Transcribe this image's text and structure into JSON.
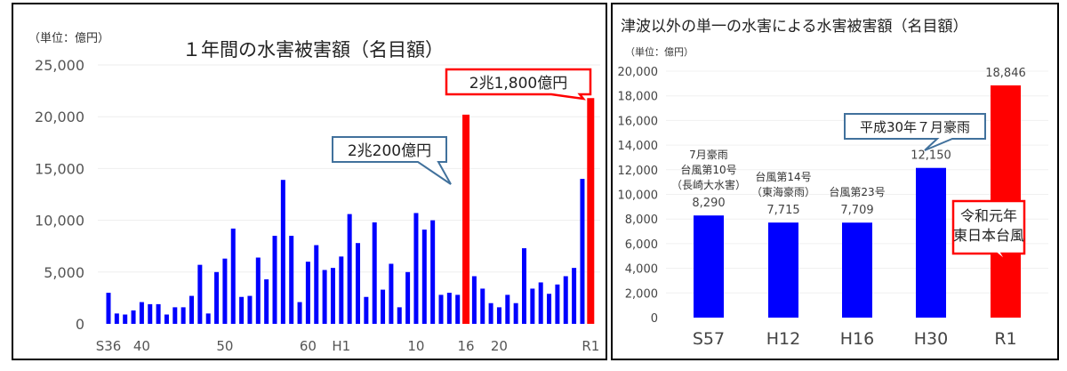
{
  "chart_data": [
    {
      "type": "bar",
      "title": "１年間の水害被害額（名目額）",
      "unit_label": "（単位：億円）",
      "ylim": [
        0,
        25000
      ],
      "yticks": [
        "0",
        "5,000",
        "10,000",
        "15,000",
        "20,000",
        "25,000"
      ],
      "ytick_values": [
        0,
        5000,
        10000,
        15000,
        20000,
        25000
      ],
      "grid": true,
      "categories": [
        "S36",
        "S37",
        "S38",
        "S39",
        "S40",
        "S41",
        "S42",
        "S43",
        "S44",
        "S45",
        "S46",
        "S47",
        "S48",
        "S49",
        "S50",
        "S51",
        "S52",
        "S53",
        "S54",
        "S55",
        "S56",
        "S57",
        "S58",
        "S59",
        "S60",
        "S61",
        "S62",
        "S63",
        "H1",
        "H2",
        "H3",
        "H4",
        "H5",
        "H6",
        "H7",
        "H8",
        "H9",
        "H10",
        "H11",
        "H12",
        "H13",
        "H14",
        "H15",
        "H16",
        "H17",
        "H18",
        "H19",
        "H20",
        "H21",
        "H22",
        "H23",
        "H24",
        "H25",
        "H26",
        "H27",
        "H28",
        "H29",
        "H30",
        "R1"
      ],
      "xtick_labels": [
        {
          "category": "S36",
          "label": "S36"
        },
        {
          "category": "S40",
          "label": "40"
        },
        {
          "category": "S50",
          "label": "50"
        },
        {
          "category": "S60",
          "label": "60"
        },
        {
          "category": "H1",
          "label": "H1"
        },
        {
          "category": "H10",
          "label": "10"
        },
        {
          "category": "H16",
          "label": "16"
        },
        {
          "category": "H20",
          "label": "20"
        },
        {
          "category": "R1",
          "label": "R1"
        }
      ],
      "values": [
        3000,
        1000,
        900,
        1300,
        2100,
        1900,
        1900,
        900,
        1600,
        1600,
        2700,
        5700,
        1000,
        5000,
        6300,
        9200,
        2600,
        2700,
        6400,
        4300,
        8500,
        13900,
        8500,
        2100,
        6000,
        7600,
        5200,
        5400,
        6500,
        10600,
        7800,
        2600,
        9800,
        3300,
        5800,
        1600,
        5000,
        10700,
        9100,
        10000,
        2800,
        3000,
        2800,
        20200,
        4600,
        3400,
        2000,
        1600,
        2800,
        2000,
        7300,
        3400,
        4000,
        2900,
        3800,
        4600,
        5400,
        14000,
        21800
      ],
      "highlight": [
        "H16",
        "R1"
      ],
      "colors": {
        "bar": "#0000ff",
        "highlight": "#ff0000",
        "callout_blue": "#41719c",
        "callout_red": "#ff0000"
      },
      "annotations": [
        {
          "category": "H16",
          "text": "2兆200億円"
        },
        {
          "category": "R1",
          "text": "2兆1,800億円"
        }
      ]
    },
    {
      "type": "bar",
      "title": "津波以外の単一の水害による水害被害額（名目額）",
      "unit_label": "（単位：億円）",
      "ylim": [
        0,
        20000
      ],
      "yticks": [
        "0",
        "2,000",
        "4,000",
        "6,000",
        "8,000",
        "10,000",
        "12,000",
        "14,000",
        "16,000",
        "18,000",
        "20,000"
      ],
      "ytick_values": [
        0,
        2000,
        4000,
        6000,
        8000,
        10000,
        12000,
        14000,
        16000,
        18000,
        20000
      ],
      "grid": true,
      "categories": [
        "S57",
        "H12",
        "H16",
        "H30",
        "R1"
      ],
      "values": [
        8290,
        7715,
        7709,
        12150,
        18846
      ],
      "value_labels": [
        "8,290",
        "7,715",
        "7,709",
        "12,150",
        "18,846"
      ],
      "event_labels": [
        [
          "7月豪雨",
          "台風第10号",
          "（長崎大水害）"
        ],
        [
          "台風第14号",
          "（東海豪雨）"
        ],
        [
          "台風第23号"
        ],
        [],
        []
      ],
      "highlight": [
        "R1"
      ],
      "colors": {
        "bar": "#0000ff",
        "highlight": "#ff0000",
        "callout_blue": "#41719c",
        "callout_red": "#ff0000"
      },
      "annotations": [
        {
          "category": "H30",
          "text": "平成30年７月豪雨"
        },
        {
          "category": "R1",
          "lines": [
            "令和元年",
            "東日本台風"
          ]
        }
      ]
    }
  ]
}
